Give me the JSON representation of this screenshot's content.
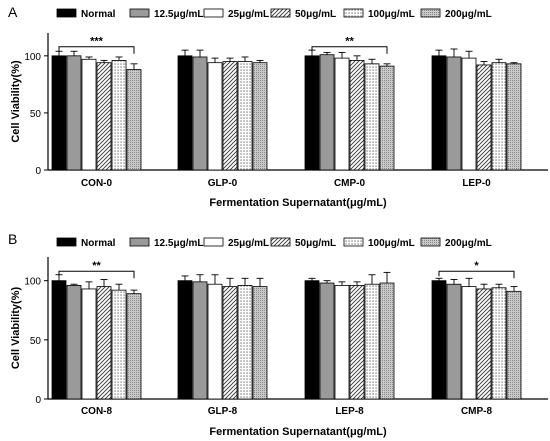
{
  "palette": {
    "normal": "#000000",
    "c12_5": "#9a9a9a",
    "c25": "#ffffff",
    "c50": "#ffffff",
    "c100": "#ffffff",
    "c200": "#bdbdbd"
  },
  "chart_data": [
    {
      "panel": "A",
      "type": "bar",
      "ylabel": "Cell Viability(%)",
      "xlabel": "Fermentation Supernatant(μg/mL)",
      "ylim": [
        0,
        120
      ],
      "yticks": [
        "0",
        "50",
        "100"
      ],
      "grid": false,
      "legend_position": "top",
      "categories": [
        "CON-0",
        "GLP-0",
        "CMP-0",
        "LEP-0"
      ],
      "series": [
        {
          "name": "Normal",
          "values": [
            100,
            100,
            100,
            100
          ],
          "errors": [
            4,
            5,
            5,
            5
          ]
        },
        {
          "name": "12.5μg/mL",
          "values": [
            100,
            99,
            101,
            99
          ],
          "errors": [
            4,
            6,
            2,
            7
          ]
        },
        {
          "name": "25μg/mL",
          "values": [
            97,
            94,
            98,
            98
          ],
          "errors": [
            2,
            4,
            5,
            6
          ]
        },
        {
          "name": "50μg/mL",
          "values": [
            94,
            95,
            96,
            92
          ],
          "errors": [
            2,
            3,
            4,
            3
          ]
        },
        {
          "name": "100μg/mL",
          "values": [
            96,
            95,
            93,
            94
          ],
          "errors": [
            3,
            4,
            4,
            3
          ]
        },
        {
          "name": "200μg/mL",
          "values": [
            88,
            94,
            91,
            93
          ],
          "errors": [
            5,
            2,
            2,
            1
          ]
        }
      ],
      "significance": [
        {
          "category": "CON-0",
          "label": "***"
        },
        {
          "category": "CMP-0",
          "label": "**"
        }
      ]
    },
    {
      "panel": "B",
      "type": "bar",
      "ylabel": "Cell Viability(%)",
      "xlabel": "Fermentation Supernatant(μg/mL)",
      "ylim": [
        0,
        120
      ],
      "yticks": [
        "0",
        "50",
        "100"
      ],
      "grid": false,
      "legend_position": "top",
      "categories": [
        "CON-8",
        "GLP-8",
        "LEP-8",
        "CMP-8"
      ],
      "series": [
        {
          "name": "Normal",
          "values": [
            100,
            100,
            100,
            100
          ],
          "errors": [
            5,
            4,
            2,
            2
          ]
        },
        {
          "name": "12.5μg/mL",
          "values": [
            96,
            99,
            98,
            97
          ],
          "errors": [
            1,
            6,
            2,
            4
          ]
        },
        {
          "name": "25μg/mL",
          "values": [
            93,
            97,
            96,
            95
          ],
          "errors": [
            6,
            8,
            3,
            7
          ]
        },
        {
          "name": "50μg/mL",
          "values": [
            95,
            95,
            96,
            93
          ],
          "errors": [
            6,
            7,
            3,
            4
          ]
        },
        {
          "name": "100μg/mL",
          "values": [
            92,
            96,
            97,
            94
          ],
          "errors": [
            5,
            6,
            8,
            3
          ]
        },
        {
          "name": "200μg/mL",
          "values": [
            89,
            95,
            98,
            91
          ],
          "errors": [
            3,
            7,
            9,
            4
          ]
        }
      ],
      "significance": [
        {
          "category": "CON-8",
          "label": "**"
        },
        {
          "category": "CMP-8",
          "label": "*"
        }
      ]
    }
  ]
}
